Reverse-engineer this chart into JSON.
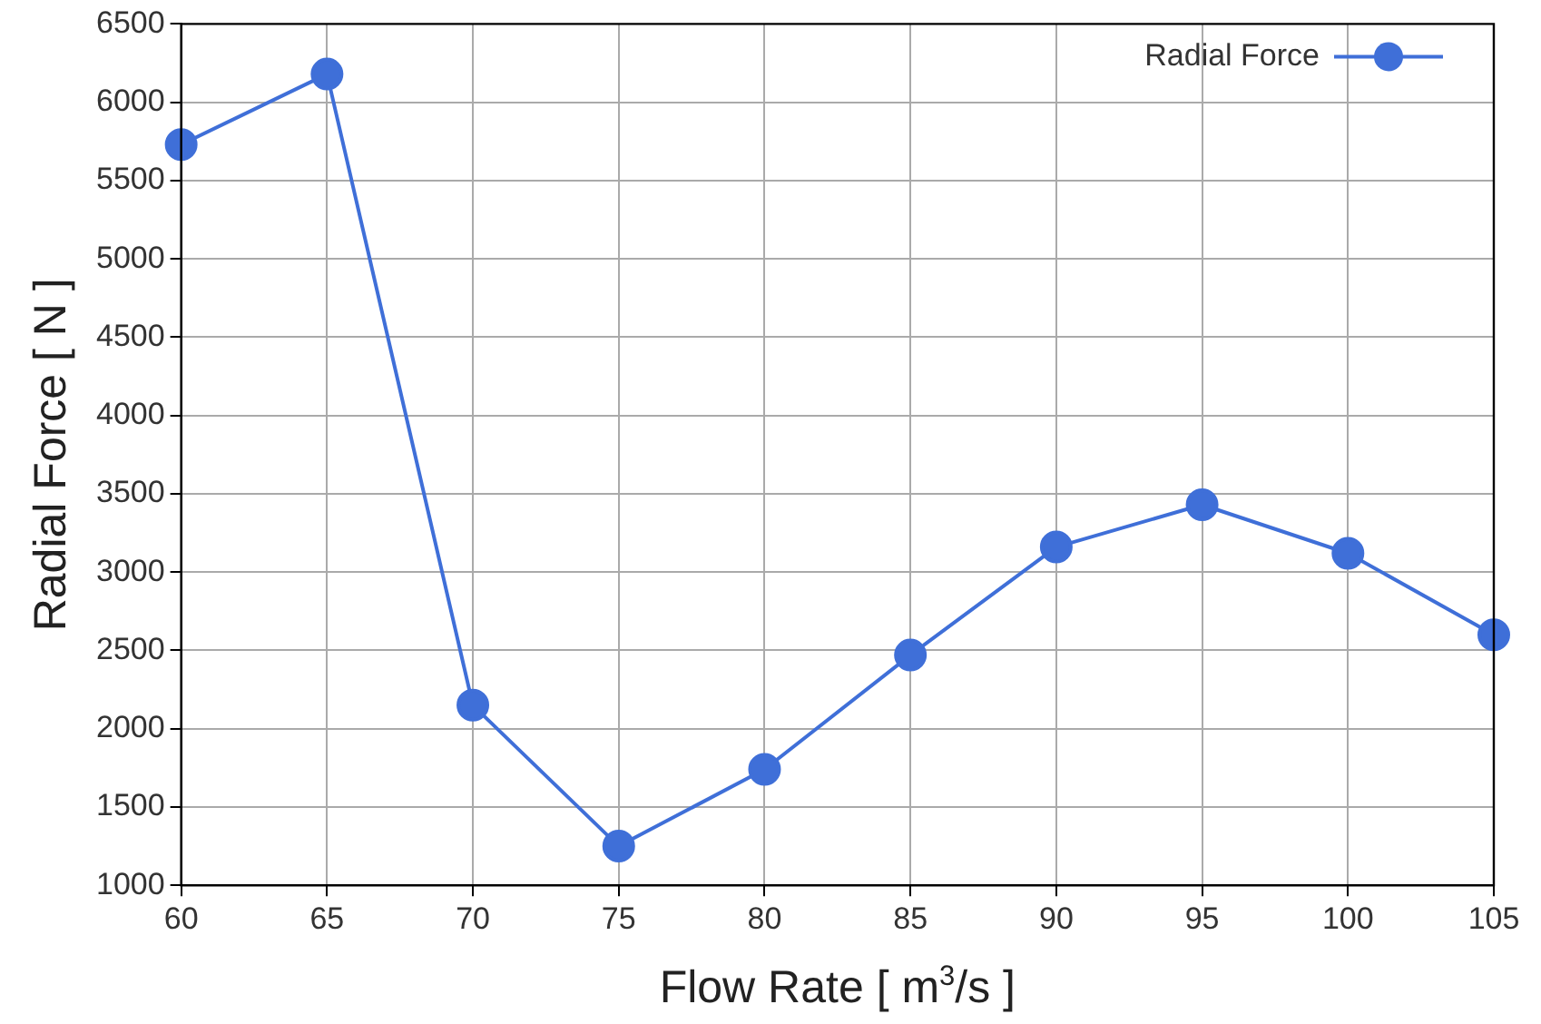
{
  "chart_data": {
    "type": "line",
    "xlabel": "Flow Rate [ m$^{3}$/s ]",
    "ylabel": "Radial Force [ N ]",
    "x": [
      60,
      65,
      70,
      75,
      80,
      85,
      90,
      95,
      100,
      105
    ],
    "series": [
      {
        "name": "Radial Force",
        "color": "#3f6fd8",
        "values": [
          5730,
          6180,
          2150,
          1250,
          1740,
          2470,
          3160,
          3430,
          3120,
          2600
        ]
      }
    ],
    "xlim": [
      60,
      105
    ],
    "xticks": [
      60,
      65,
      70,
      75,
      80,
      85,
      90,
      95,
      100,
      105
    ],
    "ylim": [
      1000,
      6500
    ],
    "yticks": [
      1000,
      1500,
      2000,
      2500,
      3000,
      3500,
      4000,
      4500,
      5000,
      5500,
      6000,
      6500
    ],
    "grid": true,
    "legend": "top right",
    "marker": "circle",
    "line_style": "solid"
  }
}
